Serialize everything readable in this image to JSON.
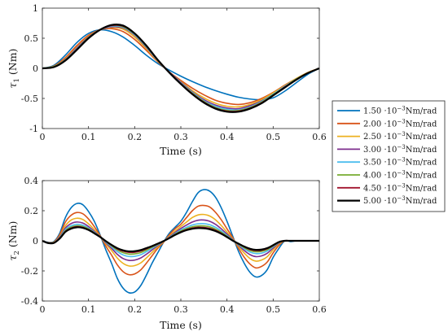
{
  "chart_data": [
    {
      "type": "line",
      "xlabel": "Time (s)",
      "ylabel_symbol": "τ",
      "ylabel_sub": "1",
      "ylabel_unit": " (Nm)",
      "xlim": [
        0,
        0.6
      ],
      "ylim": [
        -1,
        1
      ],
      "xticks": [
        "0",
        "0.1",
        "0.2",
        "0.3",
        "0.4",
        "0.5",
        "0.6"
      ],
      "yticks": [
        "-1",
        "-0.5",
        "0",
        "0.5",
        "1"
      ],
      "x": [
        0,
        0.025,
        0.05,
        0.075,
        0.1,
        0.125,
        0.15,
        0.175,
        0.2,
        0.225,
        0.25,
        0.275,
        0.3,
        0.325,
        0.35,
        0.375,
        0.4,
        0.425,
        0.45,
        0.475,
        0.5,
        0.525,
        0.55,
        0.575,
        0.6
      ],
      "series": [
        {
          "values": [
            0,
            0.05,
            0.22,
            0.43,
            0.58,
            0.64,
            0.61,
            0.52,
            0.38,
            0.22,
            0.08,
            -0.03,
            -0.13,
            -0.22,
            -0.3,
            -0.37,
            -0.43,
            -0.48,
            -0.51,
            -0.52,
            -0.49,
            -0.38,
            -0.24,
            -0.1,
            0
          ]
        },
        {
          "values": [
            0,
            0.04,
            0.18,
            0.38,
            0.55,
            0.64,
            0.66,
            0.61,
            0.48,
            0.3,
            0.11,
            -0.06,
            -0.2,
            -0.33,
            -0.44,
            -0.53,
            -0.58,
            -0.6,
            -0.57,
            -0.5,
            -0.4,
            -0.28,
            -0.17,
            -0.07,
            0
          ]
        },
        {
          "values": [
            0,
            0.03,
            0.16,
            0.35,
            0.53,
            0.64,
            0.68,
            0.65,
            0.52,
            0.33,
            0.12,
            -0.06,
            -0.22,
            -0.37,
            -0.49,
            -0.58,
            -0.63,
            -0.64,
            -0.6,
            -0.52,
            -0.41,
            -0.29,
            -0.17,
            -0.07,
            0
          ]
        },
        {
          "values": [
            0,
            0.03,
            0.15,
            0.34,
            0.52,
            0.64,
            0.69,
            0.67,
            0.55,
            0.35,
            0.13,
            -0.06,
            -0.23,
            -0.39,
            -0.52,
            -0.61,
            -0.66,
            -0.67,
            -0.62,
            -0.54,
            -0.43,
            -0.3,
            -0.18,
            -0.08,
            0
          ]
        },
        {
          "values": [
            0,
            0.03,
            0.14,
            0.33,
            0.51,
            0.64,
            0.7,
            0.68,
            0.56,
            0.36,
            0.13,
            -0.07,
            -0.24,
            -0.4,
            -0.54,
            -0.63,
            -0.68,
            -0.69,
            -0.64,
            -0.55,
            -0.43,
            -0.3,
            -0.18,
            -0.08,
            0
          ]
        },
        {
          "values": [
            0,
            0.03,
            0.14,
            0.32,
            0.51,
            0.64,
            0.71,
            0.69,
            0.57,
            0.37,
            0.14,
            -0.07,
            -0.25,
            -0.41,
            -0.55,
            -0.65,
            -0.7,
            -0.7,
            -0.65,
            -0.56,
            -0.44,
            -0.31,
            -0.18,
            -0.08,
            0
          ]
        },
        {
          "values": [
            0,
            0.02,
            0.13,
            0.32,
            0.5,
            0.64,
            0.71,
            0.7,
            0.58,
            0.38,
            0.14,
            -0.07,
            -0.25,
            -0.42,
            -0.56,
            -0.66,
            -0.71,
            -0.71,
            -0.66,
            -0.57,
            -0.45,
            -0.31,
            -0.19,
            -0.08,
            0
          ]
        },
        {
          "values": [
            0,
            0.02,
            0.13,
            0.31,
            0.5,
            0.64,
            0.72,
            0.71,
            0.58,
            0.38,
            0.14,
            -0.07,
            -0.26,
            -0.43,
            -0.57,
            -0.67,
            -0.72,
            -0.72,
            -0.67,
            -0.58,
            -0.45,
            -0.32,
            -0.19,
            -0.08,
            0
          ]
        }
      ]
    },
    {
      "type": "line",
      "xlabel": "Time (s)",
      "ylabel_symbol": "τ",
      "ylabel_sub": "2",
      "ylabel_unit": " (Nm)",
      "xlim": [
        0,
        0.6
      ],
      "ylim": [
        -0.4,
        0.4
      ],
      "xticks": [
        "0",
        "0.1",
        "0.2",
        "0.3",
        "0.4",
        "0.5",
        "0.6"
      ],
      "yticks": [
        "-0.4",
        "-0.2",
        "0",
        "0.2",
        "0.4"
      ],
      "x": [
        0,
        0.0125,
        0.025,
        0.0375,
        0.05,
        0.0625,
        0.075,
        0.0875,
        0.1,
        0.1125,
        0.125,
        0.1375,
        0.15,
        0.1625,
        0.175,
        0.1875,
        0.2,
        0.2125,
        0.225,
        0.2375,
        0.25,
        0.2625,
        0.275,
        0.2875,
        0.3,
        0.3125,
        0.325,
        0.3375,
        0.35,
        0.3625,
        0.375,
        0.3875,
        0.4,
        0.4125,
        0.425,
        0.4375,
        0.45,
        0.4625,
        0.475,
        0.4875,
        0.5,
        0.5125,
        0.525,
        0.5375,
        0.55,
        0.5625,
        0.575,
        0.5875,
        0.6
      ],
      "series": [
        {
          "values": [
            0,
            -0.01,
            -0.005,
            0.05,
            0.155,
            0.22,
            0.248,
            0.24,
            0.195,
            0.13,
            0.04,
            -0.06,
            -0.15,
            -0.25,
            -0.315,
            -0.345,
            -0.34,
            -0.3,
            -0.23,
            -0.15,
            -0.08,
            -0.01,
            0.05,
            0.09,
            0.13,
            0.19,
            0.26,
            0.32,
            0.34,
            0.33,
            0.29,
            0.22,
            0.13,
            0.03,
            -0.07,
            -0.15,
            -0.21,
            -0.24,
            -0.23,
            -0.19,
            -0.11,
            -0.05,
            0,
            -0.005,
            0,
            0,
            0,
            0,
            0
          ]
        },
        {
          "values": [
            0,
            -0.012,
            -0.008,
            0.04,
            0.125,
            0.17,
            0.188,
            0.18,
            0.145,
            0.095,
            0.035,
            -0.035,
            -0.095,
            -0.16,
            -0.205,
            -0.225,
            -0.22,
            -0.195,
            -0.15,
            -0.1,
            -0.05,
            -0.01,
            0.04,
            0.08,
            0.11,
            0.155,
            0.2,
            0.23,
            0.235,
            0.225,
            0.19,
            0.14,
            0.08,
            0.02,
            -0.05,
            -0.11,
            -0.155,
            -0.18,
            -0.17,
            -0.14,
            -0.08,
            -0.03,
            0,
            0,
            0,
            0,
            0,
            0,
            0
          ]
        },
        {
          "values": [
            0,
            -0.014,
            -0.01,
            0.03,
            0.1,
            0.138,
            0.15,
            0.142,
            0.113,
            0.075,
            0.03,
            -0.02,
            -0.065,
            -0.115,
            -0.15,
            -0.167,
            -0.165,
            -0.148,
            -0.115,
            -0.078,
            -0.04,
            -0.006,
            0.03,
            0.065,
            0.095,
            0.125,
            0.155,
            0.172,
            0.175,
            0.165,
            0.14,
            0.102,
            0.058,
            0.012,
            -0.038,
            -0.082,
            -0.118,
            -0.135,
            -0.128,
            -0.105,
            -0.06,
            -0.02,
            0,
            0,
            0,
            0,
            0,
            0,
            0
          ]
        },
        {
          "values": [
            0,
            -0.015,
            -0.012,
            0.025,
            0.085,
            0.115,
            0.125,
            0.118,
            0.095,
            0.063,
            0.028,
            -0.013,
            -0.05,
            -0.09,
            -0.118,
            -0.13,
            -0.128,
            -0.115,
            -0.09,
            -0.061,
            -0.032,
            -0.004,
            0.025,
            0.055,
            0.082,
            0.105,
            0.125,
            0.137,
            0.138,
            0.13,
            0.11,
            0.08,
            0.045,
            0.008,
            -0.03,
            -0.065,
            -0.092,
            -0.105,
            -0.1,
            -0.082,
            -0.048,
            -0.015,
            0,
            0,
            0,
            0,
            0,
            0,
            0
          ]
        },
        {
          "values": [
            0,
            -0.015,
            -0.013,
            0.02,
            0.075,
            0.1,
            0.11,
            0.104,
            0.085,
            0.057,
            0.027,
            -0.008,
            -0.04,
            -0.072,
            -0.094,
            -0.104,
            -0.103,
            -0.093,
            -0.073,
            -0.05,
            -0.027,
            -0.003,
            0.022,
            0.048,
            0.072,
            0.09,
            0.105,
            0.113,
            0.114,
            0.107,
            0.09,
            0.066,
            0.036,
            0.005,
            -0.025,
            -0.053,
            -0.075,
            -0.085,
            -0.082,
            -0.067,
            -0.04,
            -0.012,
            0,
            0,
            0,
            0,
            0,
            0,
            0
          ]
        },
        {
          "values": [
            0,
            -0.015,
            -0.013,
            0.018,
            0.068,
            0.091,
            0.1,
            0.095,
            0.079,
            0.054,
            0.027,
            -0.005,
            -0.034,
            -0.061,
            -0.079,
            -0.088,
            -0.087,
            -0.079,
            -0.062,
            -0.043,
            -0.023,
            -0.002,
            0.02,
            0.044,
            0.065,
            0.081,
            0.093,
            0.099,
            0.099,
            0.093,
            0.078,
            0.057,
            0.031,
            0.003,
            -0.022,
            -0.046,
            -0.065,
            -0.073,
            -0.07,
            -0.058,
            -0.035,
            -0.01,
            0,
            0,
            0,
            0,
            0,
            0,
            0
          ]
        },
        {
          "values": [
            0,
            -0.015,
            -0.014,
            0.016,
            0.063,
            0.085,
            0.094,
            0.09,
            0.075,
            0.052,
            0.026,
            -0.003,
            -0.03,
            -0.054,
            -0.069,
            -0.077,
            -0.076,
            -0.069,
            -0.054,
            -0.038,
            -0.021,
            -0.002,
            0.019,
            0.041,
            0.06,
            0.075,
            0.085,
            0.09,
            0.089,
            0.083,
            0.07,
            0.051,
            0.027,
            0.002,
            -0.02,
            -0.041,
            -0.058,
            -0.065,
            -0.063,
            -0.052,
            -0.032,
            -0.009,
            0,
            0,
            0,
            0,
            0,
            0,
            0
          ]
        },
        {
          "values": [
            0,
            -0.015,
            -0.014,
            0.015,
            0.06,
            0.081,
            0.09,
            0.086,
            0.072,
            0.05,
            0.026,
            -0.002,
            -0.027,
            -0.049,
            -0.063,
            -0.07,
            -0.069,
            -0.062,
            -0.049,
            -0.035,
            -0.019,
            -0.002,
            0.018,
            0.039,
            0.057,
            0.071,
            0.08,
            0.084,
            0.083,
            0.077,
            0.065,
            0.047,
            0.025,
            0.001,
            -0.019,
            -0.038,
            -0.053,
            -0.06,
            -0.058,
            -0.048,
            -0.029,
            -0.008,
            0,
            0,
            0,
            0,
            0,
            0,
            0
          ]
        }
      ]
    }
  ],
  "legend": {
    "placement": "right",
    "unit_exponent": "−3",
    "items": [
      {
        "value": "1.50",
        "unit": "Nm/rad",
        "color": "#0072bd"
      },
      {
        "value": "2.00",
        "unit": "Nm/rad",
        "color": "#d95319"
      },
      {
        "value": "2.50",
        "unit": "Nm/rad",
        "color": "#edb120"
      },
      {
        "value": "3.00",
        "unit": "Nm/rad",
        "color": "#7e2f8e"
      },
      {
        "value": "3.50",
        "unit": "Nm/rad",
        "color": "#4dbeee"
      },
      {
        "value": "4.00",
        "unit": "Nm/rad",
        "color": "#77ac30"
      },
      {
        "value": "4.50",
        "unit": "Nm/rad",
        "color": "#a2142f"
      },
      {
        "value": "5.00",
        "unit": "Nm/rad",
        "color": "#000000"
      }
    ]
  }
}
